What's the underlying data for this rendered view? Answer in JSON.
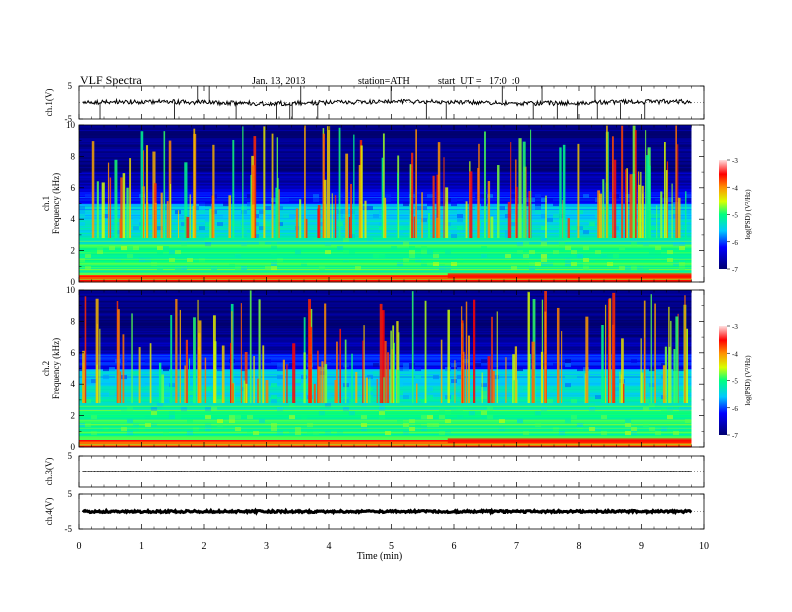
{
  "header": {
    "title": "VLF Spectra",
    "date": "Jan. 13, 2013",
    "station": "station=ATH",
    "start": "start  UT =   17:0  :0"
  },
  "chart_data": [
    {
      "type": "line",
      "panel": "ch1-waveform",
      "ylabel": "ch.1(V)",
      "ylim": [
        -5,
        5
      ],
      "yticks": [
        "5",
        "-5"
      ],
      "baseline": 0,
      "spikes": "sparse narrow spikes down to about -5 V"
    },
    {
      "type": "heatmap",
      "panel": "ch1-spectrogram",
      "ylabel": "ch.1\nFrequency (kHz)",
      "ylim": [
        0,
        10
      ],
      "yticks": [
        "0",
        "2",
        "4",
        "6",
        "8",
        "10"
      ],
      "colorbar": {
        "label": "log(PSD) (V²/Hz)",
        "range": [
          -7,
          -3
        ],
        "ticks": [
          "-3",
          "-4",
          "-5",
          "-6",
          "-7"
        ]
      }
    },
    {
      "type": "heatmap",
      "panel": "ch2-spectrogram",
      "ylabel": "ch.2\nFrequency (kHz)",
      "ylim": [
        0,
        10
      ],
      "yticks": [
        "0",
        "2",
        "4",
        "6",
        "8",
        "10"
      ],
      "colorbar": {
        "label": "log(PSD) (V²/Hz)",
        "range": [
          -7,
          -3
        ],
        "ticks": [
          "-3",
          "-4",
          "-5",
          "-6",
          "-7"
        ]
      }
    },
    {
      "type": "line",
      "panel": "ch3-waveform",
      "ylabel": "ch.3(V)",
      "ylim": [
        -5,
        5
      ],
      "yticks": [
        "5"
      ],
      "baseline": 0
    },
    {
      "type": "line",
      "panel": "ch4-waveform",
      "ylabel": "ch.4(V)",
      "ylim": [
        -5,
        5
      ],
      "yticks": [
        "5",
        "-5"
      ],
      "baseline": 0
    },
    {
      "type": "axis",
      "xlabel": "Time  (min)",
      "xlim": [
        0,
        10
      ],
      "data_end_min": 9.8,
      "xticks": [
        "0",
        "1",
        "2",
        "3",
        "4",
        "5",
        "6",
        "7",
        "8",
        "9",
        "10"
      ]
    }
  ]
}
